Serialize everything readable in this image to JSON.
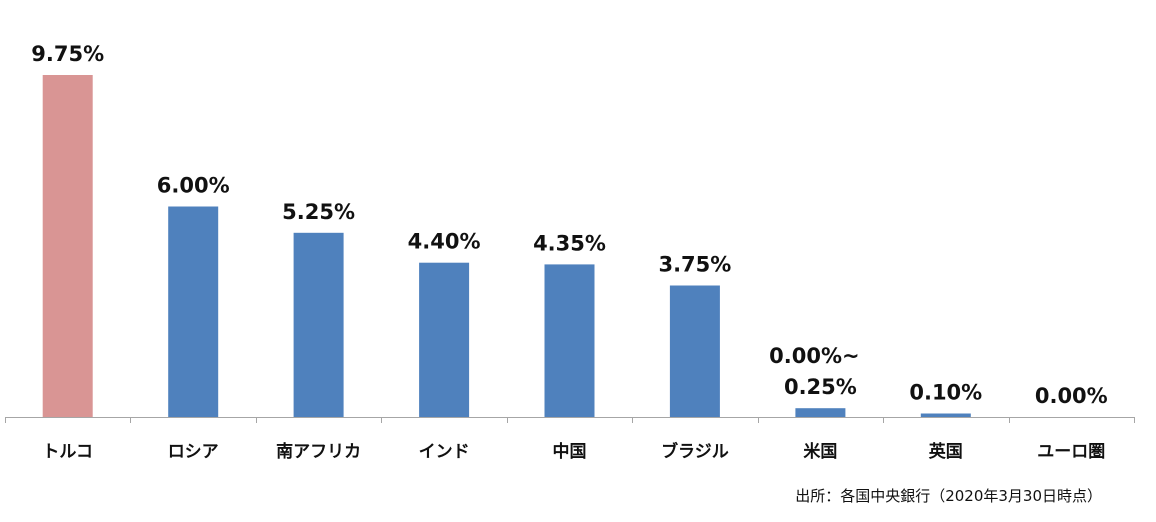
{
  "chart_data": {
    "type": "bar",
    "categories": [
      "トルコ",
      "ロシア",
      "南アフリカ",
      "インド",
      "中国",
      "ブラジル",
      "米国",
      "英国",
      "ユーロ圏"
    ],
    "values": [
      9.75,
      6.0,
      5.25,
      4.4,
      4.35,
      3.75,
      0.25,
      0.1,
      0.0
    ],
    "value_labels": [
      "9.75%",
      "6.00%",
      "5.25%",
      "4.40%",
      "4.35%",
      "3.75%",
      "0.25%",
      "0.10%",
      "0.00%"
    ],
    "extra_labels": [
      "",
      "",
      "",
      "",
      "",
      "",
      "0.00%~",
      "",
      ""
    ],
    "colors": [
      "#D99594",
      "#4F81BD",
      "#4F81BD",
      "#4F81BD",
      "#4F81BD",
      "#4F81BD",
      "#4F81BD",
      "#4F81BD",
      "#4F81BD"
    ],
    "ylim": [
      0,
      9.75
    ],
    "grid": false,
    "legend": "none"
  },
  "source_note": "出所：各国中央銀行（2020年3月30日時点）"
}
